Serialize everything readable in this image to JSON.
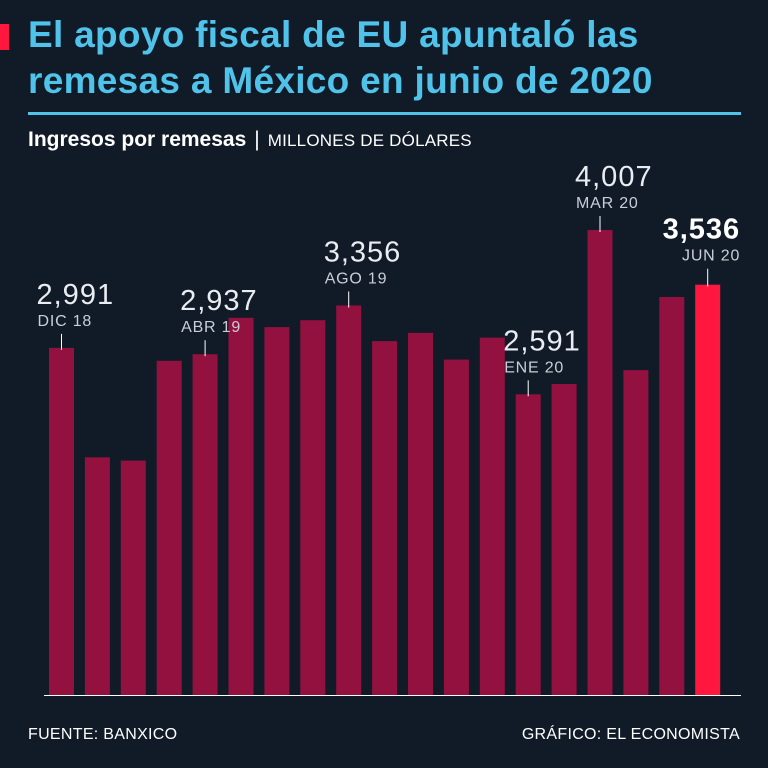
{
  "header": {
    "title": "El apoyo fiscal de EU apuntaló las remesas a México en junio de 2020",
    "subtitle_main": "Ingresos por remesas",
    "subtitle_sep": "|",
    "subtitle_units": "MILLONES DE DÓLARES"
  },
  "footer": {
    "source": "FUENTE: BANXICO",
    "credit": "GRÁFICO: EL ECONOMISTA"
  },
  "colors": {
    "background": "#111b28",
    "title": "#4fc3ea",
    "bar": "#93113f",
    "highlight": "#ff1740",
    "label_number": "#e9ecf0",
    "label_date": "#c9ced6",
    "leader": "#ffffff",
    "axis": "#ffffff"
  },
  "chart_data": {
    "type": "bar",
    "title": "Ingresos por remesas",
    "ylabel": "MILLONES DE DÓLARES",
    "ylim": [
      0,
      4200
    ],
    "highlight_index": 18,
    "values": [
      2991,
      2048,
      2020,
      2880,
      2937,
      3250,
      3170,
      3230,
      3356,
      3050,
      3120,
      2890,
      3080,
      2591,
      2680,
      4007,
      2800,
      3430,
      3536
    ],
    "annotations": [
      {
        "index": 0,
        "value": "2,991",
        "date": "DIC 18"
      },
      {
        "index": 4,
        "value": "2,937",
        "date": "ABR 19"
      },
      {
        "index": 8,
        "value": "3,356",
        "date": "AGO 19"
      },
      {
        "index": 13,
        "value": "2,591",
        "date": "ENE 20"
      },
      {
        "index": 15,
        "value": "4,007",
        "date": "MAR 20"
      },
      {
        "index": 18,
        "value": "3,536",
        "date": "JUN 20"
      }
    ]
  }
}
